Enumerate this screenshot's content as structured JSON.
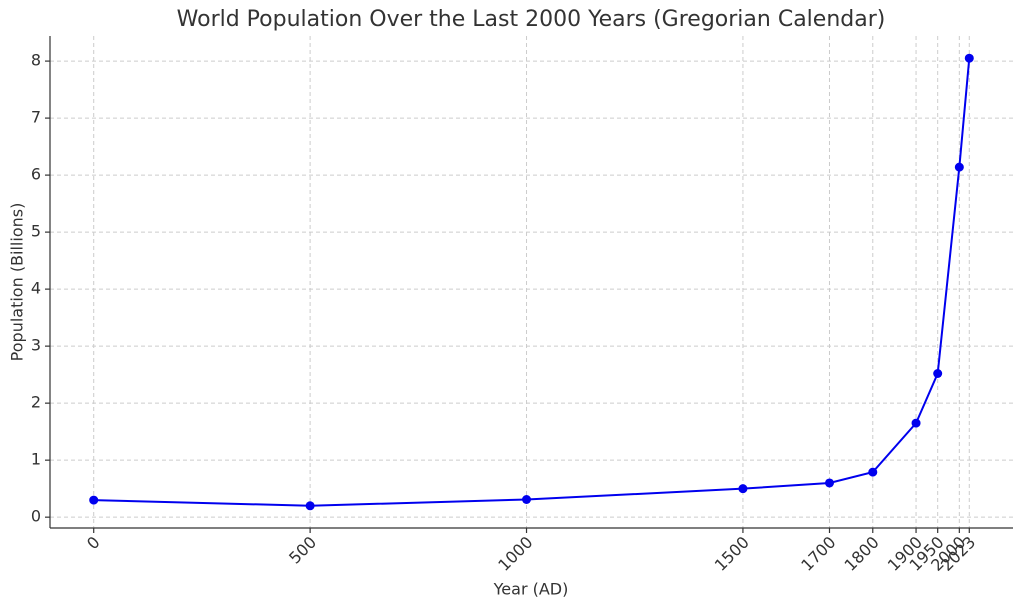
{
  "chart_data": {
    "type": "line",
    "title": "World Population Over the Last 2000 Years (Gregorian Calendar)",
    "x_label": "Year (AD)",
    "y_label": "Population (Billions)",
    "x": [
      0,
      500,
      1000,
      1500,
      1700,
      1800,
      1900,
      1950,
      2000,
      2023
    ],
    "series": [
      {
        "name": "World Population",
        "color": "#0000ee",
        "values": [
          0.3,
          0.2,
          0.31,
          0.5,
          0.6,
          0.79,
          1.65,
          2.52,
          6.14,
          8.05
        ]
      }
    ],
    "xlim": [
      -101,
      2124
    ],
    "ylim": [
      -0.19,
      8.44
    ],
    "xticks": [
      0,
      500,
      1000,
      1500,
      1700,
      1800,
      1900,
      1950,
      2000,
      2023
    ],
    "yticks": [
      0,
      1,
      2,
      3,
      4,
      5,
      6,
      7,
      8
    ],
    "grid": true
  }
}
